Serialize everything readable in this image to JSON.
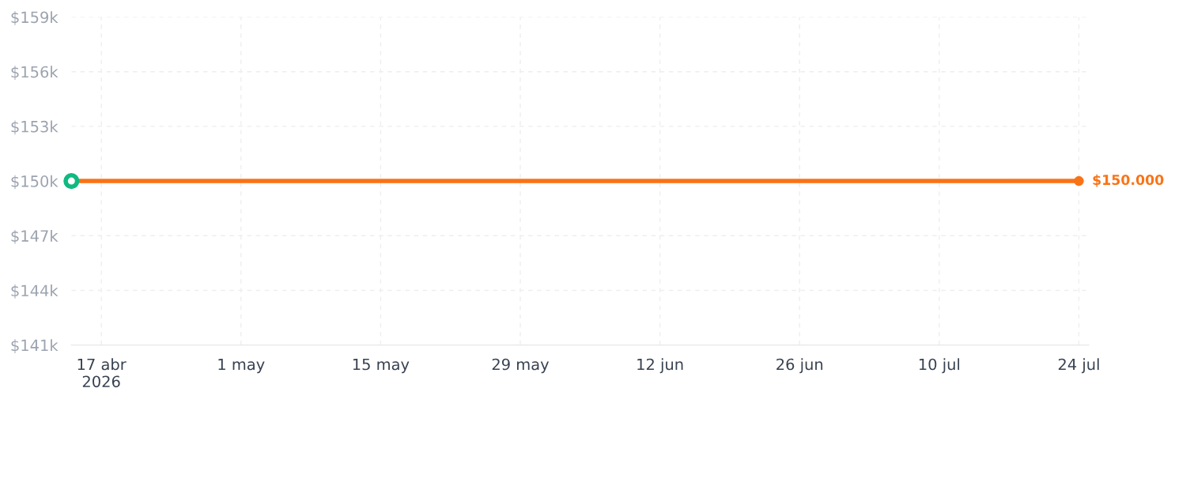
{
  "chart_data": {
    "type": "line",
    "series": [
      {
        "color": "#f97316",
        "x": [
          "2026-04-14",
          "2026-07-24"
        ],
        "values": [
          150000,
          150000
        ],
        "marker": "circle",
        "value_labels": [
          null,
          "$150.000"
        ]
      },
      {
        "type": "scatter",
        "color": "#10b981",
        "x": [
          "2026-04-14"
        ],
        "values": [
          150000
        ],
        "marker": "circle"
      }
    ],
    "xlim": [
      "2026-04-14",
      "2026-07-25"
    ],
    "xticks": [
      {
        "value": "2026-04-17",
        "label": "17 abr\n2026"
      },
      {
        "value": "2026-05-01",
        "label": "1 may"
      },
      {
        "value": "2026-05-15",
        "label": "15 may"
      },
      {
        "value": "2026-05-29",
        "label": "29 may"
      },
      {
        "value": "2026-06-12",
        "label": "12 jun"
      },
      {
        "value": "2026-06-26",
        "label": "26 jun"
      },
      {
        "value": "2026-07-10",
        "label": "10 jul"
      },
      {
        "value": "2026-07-24",
        "label": "24 jul"
      }
    ],
    "ylim": [
      141000,
      159000
    ],
    "yticks": [
      {
        "value": 141000,
        "label": "$141k"
      },
      {
        "value": 144000,
        "label": "$144k"
      },
      {
        "value": 147000,
        "label": "$147k"
      },
      {
        "value": 150000,
        "label": "$150k"
      },
      {
        "value": 153000,
        "label": "$153k"
      },
      {
        "value": 156000,
        "label": "$156k"
      },
      {
        "value": 159000,
        "label": "$159k"
      }
    ],
    "grid": true,
    "line_style": "solid"
  }
}
